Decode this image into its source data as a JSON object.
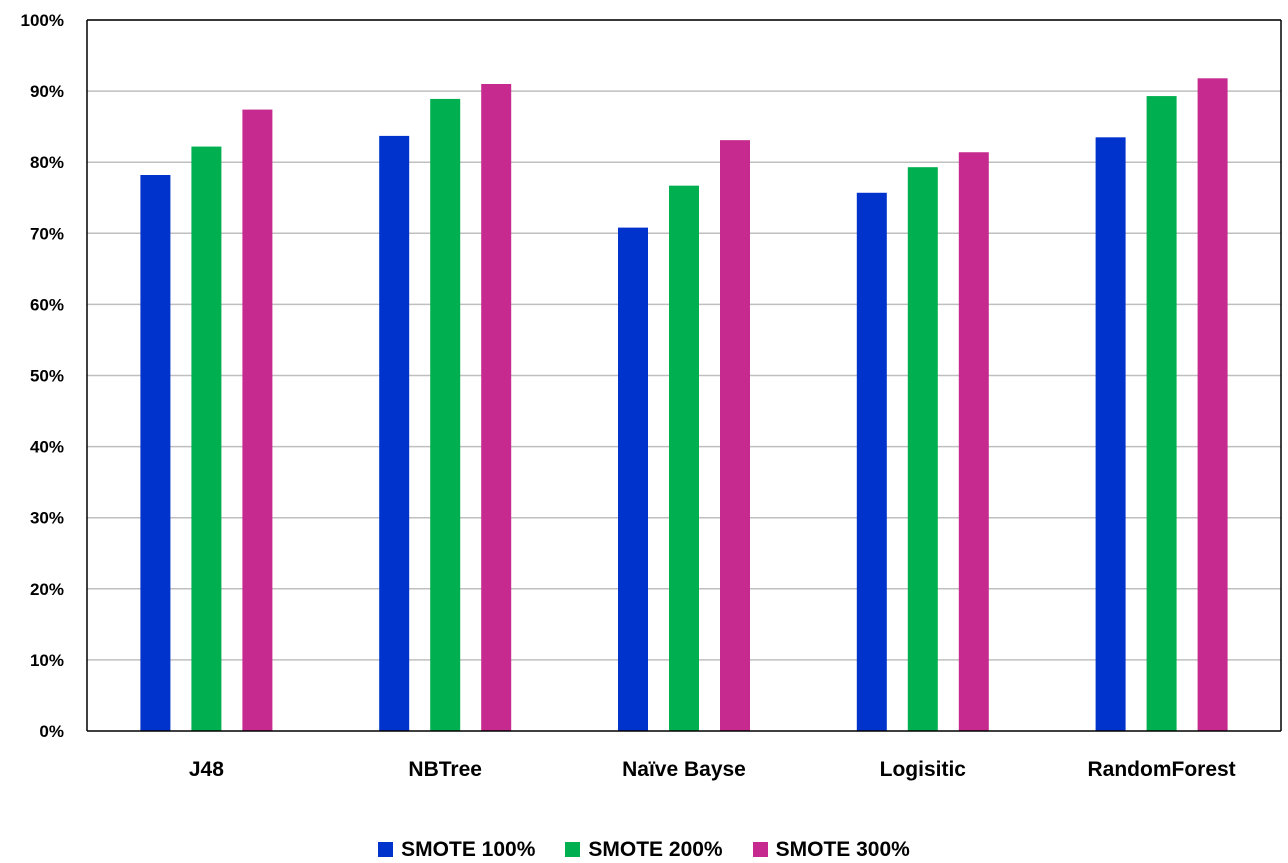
{
  "chart_data": {
    "type": "bar",
    "title": "",
    "xlabel": "",
    "ylabel": "",
    "ylim": [
      0,
      100
    ],
    "yticks": [
      0,
      10,
      20,
      30,
      40,
      50,
      60,
      70,
      80,
      90,
      100
    ],
    "ytick_suffix": "%",
    "grid": true,
    "legend_position": "bottom",
    "categories": [
      "J48",
      "NBTree",
      "Naïve Bayse",
      "Logisitic",
      "RandomForest"
    ],
    "series": [
      {
        "name": "SMOTE 100%",
        "color": "#0033CC",
        "values": [
          78.2,
          83.7,
          70.8,
          75.7,
          83.5
        ]
      },
      {
        "name": "SMOTE 200%",
        "color": "#00B050",
        "values": [
          82.2,
          88.9,
          76.7,
          79.3,
          89.3
        ]
      },
      {
        "name": "SMOTE 300%",
        "color": "#C62A8F",
        "values": [
          87.4,
          91.0,
          83.1,
          81.4,
          91.8
        ]
      }
    ]
  }
}
